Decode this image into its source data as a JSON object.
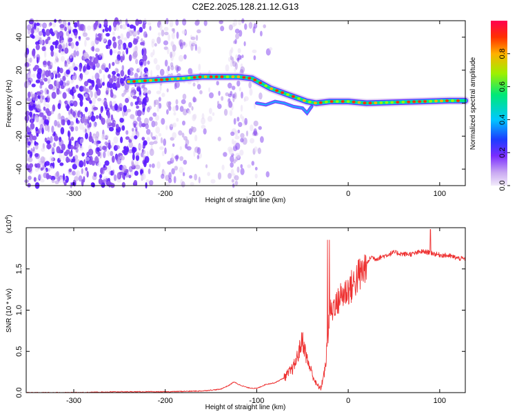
{
  "title": "C2E2.2025.128.21.12.G13",
  "colors": {
    "background": "#ffffff",
    "snr_line": "#ee3030",
    "colormap": [
      "#e8dcf4",
      "#b792ea",
      "#8a4ff0",
      "#5a18ff",
      "#1c3cff",
      "#00c6ff",
      "#00e87a",
      "#9ef000",
      "#ff8a00",
      "#ff0000"
    ]
  },
  "chart_data": [
    {
      "type": "heatmap",
      "xlabel": "Height of straight line (km)",
      "ylabel": "Frequency (Hz)",
      "xlim": [
        -352,
        128
      ],
      "ylim": [
        -50,
        50
      ],
      "x_ticks": [
        -300,
        -200,
        -100,
        0,
        100
      ],
      "y_ticks": [
        -40,
        -20,
        0,
        20,
        40
      ],
      "colorbar": {
        "label": "Normalized spectral amplitude",
        "range": [
          0.0,
          1.0
        ],
        "ticks": [
          "0.0",
          "0.2",
          "0.4",
          "0.6",
          "0.8"
        ]
      },
      "ridge": [
        {
          "x": -240,
          "y": 13
        },
        {
          "x": -210,
          "y": 14
        },
        {
          "x": -180,
          "y": 15
        },
        {
          "x": -160,
          "y": 16
        },
        {
          "x": -140,
          "y": 16
        },
        {
          "x": -120,
          "y": 16
        },
        {
          "x": -105,
          "y": 15
        },
        {
          "x": -95,
          "y": 12
        },
        {
          "x": -85,
          "y": 9
        },
        {
          "x": -75,
          "y": 7
        },
        {
          "x": -65,
          "y": 5
        },
        {
          "x": -55,
          "y": 3
        },
        {
          "x": -45,
          "y": 1
        },
        {
          "x": -35,
          "y": 0
        },
        {
          "x": -20,
          "y": 1
        },
        {
          "x": 0,
          "y": 1
        },
        {
          "x": 20,
          "y": 0
        },
        {
          "x": 50,
          "y": 0.5
        },
        {
          "x": 80,
          "y": 1
        },
        {
          "x": 110,
          "y": 1.5
        },
        {
          "x": 128,
          "y": 1.5
        }
      ]
    },
    {
      "type": "line",
      "xlabel": "Height of straight line (km)",
      "ylabel": "SNR (10 * v/v)",
      "y_multiplier": "(x10",
      "y_multiplier_exp": "4",
      "xlim": [
        -352,
        128
      ],
      "ylim": [
        0,
        2.0
      ],
      "x_ticks": [
        -300,
        -200,
        -100,
        0,
        100
      ],
      "y_ticks": [
        "0.0",
        "0.5",
        "1.0",
        "1.5"
      ],
      "series": [
        {
          "x": [
            -352,
            -300,
            -250,
            -200,
            -160,
            -140,
            -130,
            -125,
            -120,
            -110,
            -100,
            -90,
            -80,
            -70,
            -60,
            -55,
            -50,
            -45,
            -40,
            -35,
            -30,
            -25,
            -22,
            -20,
            -18,
            -15,
            -12,
            -10,
            -5,
            0,
            5,
            10,
            15,
            20,
            25,
            30,
            40,
            50,
            60,
            70,
            80,
            90,
            95,
            100,
            110,
            120,
            128
          ],
          "y": [
            0.0,
            0.0,
            0.01,
            0.01,
            0.02,
            0.04,
            0.09,
            0.13,
            0.1,
            0.06,
            0.05,
            0.1,
            0.12,
            0.18,
            0.3,
            0.45,
            0.65,
            0.4,
            0.25,
            0.1,
            0.05,
            0.3,
            0.7,
            1.05,
            0.95,
            1.1,
            1.05,
            1.15,
            1.2,
            1.25,
            1.3,
            1.4,
            1.45,
            1.55,
            1.65,
            1.62,
            1.66,
            1.7,
            1.68,
            1.68,
            1.71,
            1.7,
            1.68,
            1.67,
            1.66,
            1.63,
            1.62
          ]
        }
      ]
    }
  ]
}
